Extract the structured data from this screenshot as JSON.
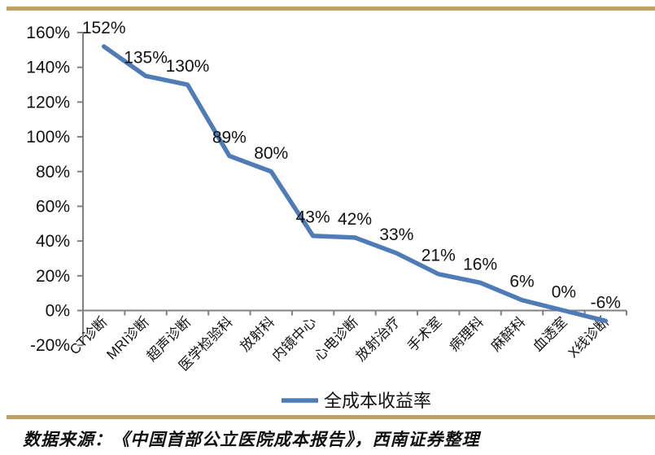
{
  "colors": {
    "line": "#4f7cb7",
    "divider": "#bea264",
    "axis": "#808080",
    "text": "#111111"
  },
  "chart_data": {
    "type": "line",
    "categories": [
      "CT诊断",
      "MRI诊断",
      "超声诊断",
      "医学检验科",
      "放射科",
      "内镜中心",
      "心电诊断",
      "放射治疗",
      "手术室",
      "病理科",
      "麻醉科",
      "血透室",
      "X线诊断"
    ],
    "series": [
      {
        "name": "全成本收益率",
        "values": [
          152,
          135,
          130,
          89,
          80,
          43,
          42,
          33,
          21,
          16,
          6,
          0,
          -6
        ]
      }
    ],
    "data_labels": [
      "152%",
      "135%",
      "130%",
      "89%",
      "80%",
      "43%",
      "42%",
      "33%",
      "21%",
      "16%",
      "6%",
      "0%",
      "-6%"
    ],
    "title": "",
    "xlabel": "",
    "ylabel": "",
    "ylim": [
      -20,
      160
    ],
    "ytick_step": 20,
    "ytick_labels": [
      "-20%",
      "0%",
      "20%",
      "40%",
      "60%",
      "80%",
      "100%",
      "120%",
      "140%",
      "160%"
    ],
    "grid": false,
    "legend_position": "bottom"
  },
  "legend": {
    "label": "全成本收益率"
  },
  "source": {
    "text": "数据来源：《中国首部公立医院成本报告》，西南证券整理"
  }
}
